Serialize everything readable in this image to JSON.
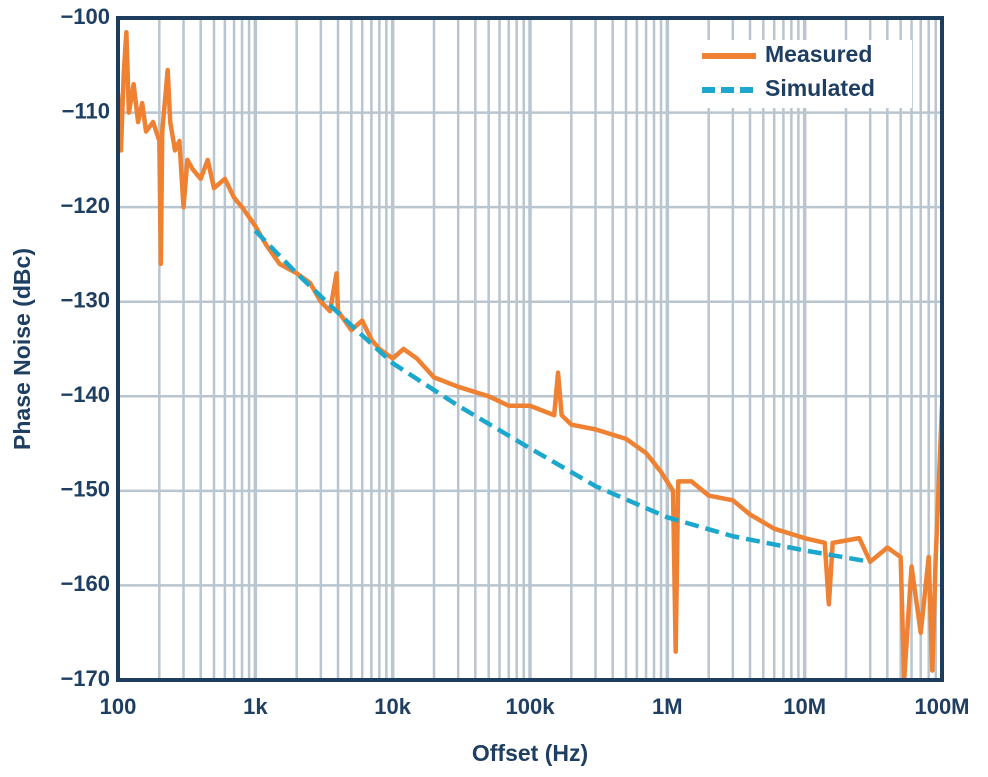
{
  "chart_data": {
    "type": "line",
    "xlabel": "Offset (Hz)",
    "ylabel": "Phase Noise (dBc)",
    "xscale": "log",
    "grid": true,
    "legend": "upper right",
    "xlim": [
      100,
      100000000
    ],
    "ylim": [
      -170,
      -100
    ],
    "xticks": [
      100,
      {
        "value": 1000,
        "label": "1k"
      },
      {
        "value": 10000,
        "label": "10k"
      },
      {
        "value": 100000,
        "label": "100k"
      },
      {
        "value": 1000000,
        "label": "1M"
      },
      {
        "value": 10000000,
        "label": "10M"
      },
      {
        "value": 100000000,
        "label": "100M"
      }
    ],
    "yticks": [
      {
        "value": -170,
        "label": "−170"
      },
      {
        "value": -160,
        "label": "−160"
      },
      {
        "value": -150,
        "label": "−150"
      },
      {
        "value": -140,
        "label": "−140"
      },
      {
        "value": -130,
        "label": "−130"
      },
      {
        "value": -120,
        "label": "−120"
      },
      {
        "value": -110,
        "label": "−110"
      },
      {
        "value": -100,
        "label": "−100"
      }
    ],
    "series": [
      {
        "name": "Measured",
        "color": "#ef8132",
        "style": "solid",
        "x": [
          100,
          105,
          110,
          115,
          120,
          130,
          140,
          150,
          160,
          180,
          200,
          205,
          210,
          230,
          240,
          260,
          280,
          300,
          320,
          350,
          400,
          450,
          500,
          600,
          700,
          800,
          1000,
          1200,
          1500,
          2000,
          2500,
          3000,
          3500,
          3900,
          4000,
          5000,
          6000,
          7000,
          8000,
          10000,
          12000,
          15000,
          20000,
          30000,
          50000,
          70000,
          100000,
          150000,
          160000,
          170000,
          200000,
          300000,
          500000,
          700000,
          900000,
          1100000,
          1150000,
          1200000,
          1500000,
          2000000,
          3000000,
          4000000,
          6000000,
          10000000,
          14000000,
          15000000,
          16000000,
          25000000,
          30000000,
          40000000,
          50000000,
          53000000,
          60000000,
          70000000,
          80000000,
          85000000,
          90000000,
          100000000
        ],
        "values": [
          -108,
          -114,
          -106,
          -101.5,
          -110,
          -107,
          -111,
          -109,
          -112,
          -111,
          -113,
          -126,
          -112,
          -105.5,
          -111,
          -114,
          -113,
          -120,
          -115,
          -116,
          -117,
          -115,
          -118,
          -117,
          -119,
          -120,
          -122,
          -124,
          -126,
          -127,
          -128,
          -130,
          -131,
          -127,
          -131,
          -133,
          -132,
          -134,
          -135,
          -136,
          -135,
          -136,
          -138,
          -139,
          -140,
          -141,
          -141,
          -142,
          -137.5,
          -142,
          -143,
          -143.5,
          -144.5,
          -146,
          -148,
          -150,
          -167,
          -149,
          -149,
          -150.5,
          -151,
          -152.5,
          -154,
          -155,
          -155.5,
          -162,
          -155.5,
          -155,
          -157.5,
          -156,
          -157,
          -170,
          -158,
          -165,
          -157,
          -169,
          -157,
          -141
        ]
      },
      {
        "name": "Simulated",
        "color": "#1ba8cc",
        "style": "dashed",
        "x": [
          1000,
          2000,
          5000,
          10000,
          30000,
          100000,
          300000,
          1000000,
          3000000,
          10000000,
          30000000
        ],
        "values": [
          -122.5,
          -127,
          -132.5,
          -136.5,
          -141,
          -145.5,
          -149.5,
          -152.8,
          -154.8,
          -156.3,
          -157.5
        ]
      }
    ]
  }
}
